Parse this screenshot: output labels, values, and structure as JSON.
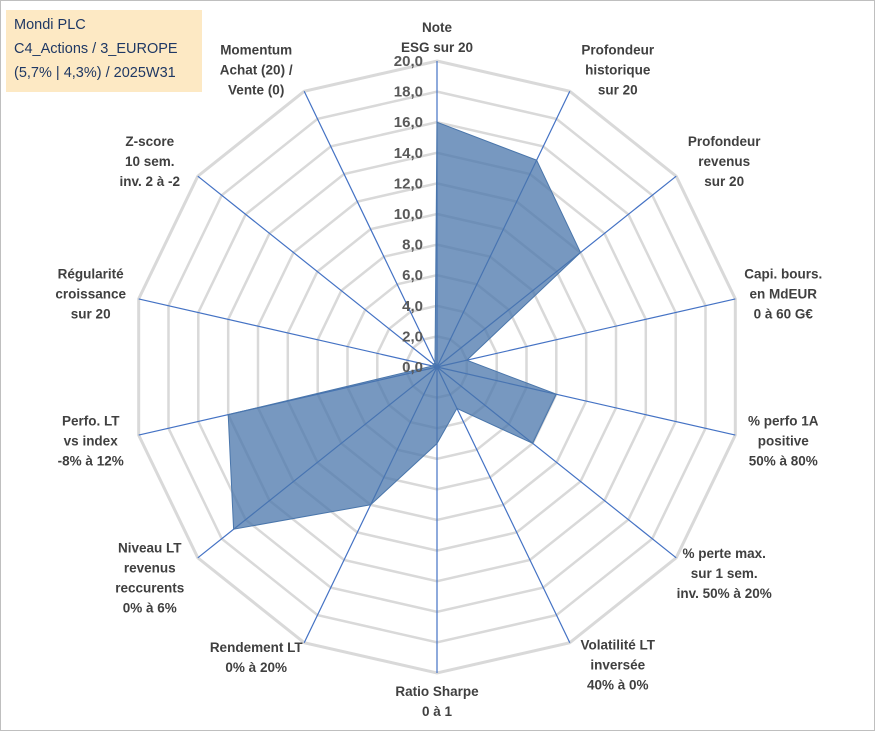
{
  "header": {
    "company": "Mondi PLC",
    "category": "C4_Actions / 3_EUROPE",
    "period": "(5,7% | 4,3%) / 2025W31"
  },
  "chart_data": {
    "type": "radar",
    "title": "",
    "axes": [
      {
        "label": [
          "Note",
          "ESG sur 20"
        ]
      },
      {
        "label": [
          "Profondeur",
          "historique",
          "sur 20"
        ]
      },
      {
        "label": [
          "Profondeur",
          "revenus",
          "sur 20"
        ]
      },
      {
        "label": [
          "Capi. bours.",
          "en MdEUR",
          "0 à 60 G€"
        ]
      },
      {
        "label": [
          "% perfo 1A",
          "positive",
          "50% à 80%"
        ]
      },
      {
        "label": [
          "% perte max.",
          "sur 1 sem.",
          "inv. 50% à 20%"
        ]
      },
      {
        "label": [
          "Volatilité LT",
          "inversée",
          "40% à 0%"
        ]
      },
      {
        "label": [
          "Ratio Sharpe",
          "0 à 1"
        ]
      },
      {
        "label": [
          "Rendement LT",
          "0% à 20%"
        ]
      },
      {
        "label": [
          "Niveau LT",
          "revenus",
          "reccurents",
          "0% à 6%"
        ]
      },
      {
        "label": [
          "Perfo. LT",
          "vs index",
          "-8% à 12%"
        ]
      },
      {
        "label": [
          "Régularité",
          "croissance",
          "sur 20"
        ]
      },
      {
        "label": [
          "Z-score",
          "10 sem.",
          "inv. 2 à -2"
        ]
      },
      {
        "label": [
          "Momentum",
          "Achat (20) /",
          "Vente (0)"
        ]
      }
    ],
    "ticks": [
      "0,0",
      "2,0",
      "4,0",
      "6,0",
      "8,0",
      "10,0",
      "12,0",
      "14,0",
      "16,0",
      "18,0",
      "20,0"
    ],
    "range": [
      0,
      20
    ],
    "series": [
      {
        "values": [
          16.0,
          15.0,
          12.0,
          2.0,
          8.0,
          8.0,
          3.0,
          5.0,
          10.0,
          17.0,
          14.0,
          0.3,
          0.3,
          0.3
        ]
      }
    ],
    "grid": true,
    "colors": {
      "fill": "#4a76ab",
      "fill_opacity": "0.75",
      "grid": "#d9d9d9",
      "spokes": "#4472c4"
    }
  }
}
